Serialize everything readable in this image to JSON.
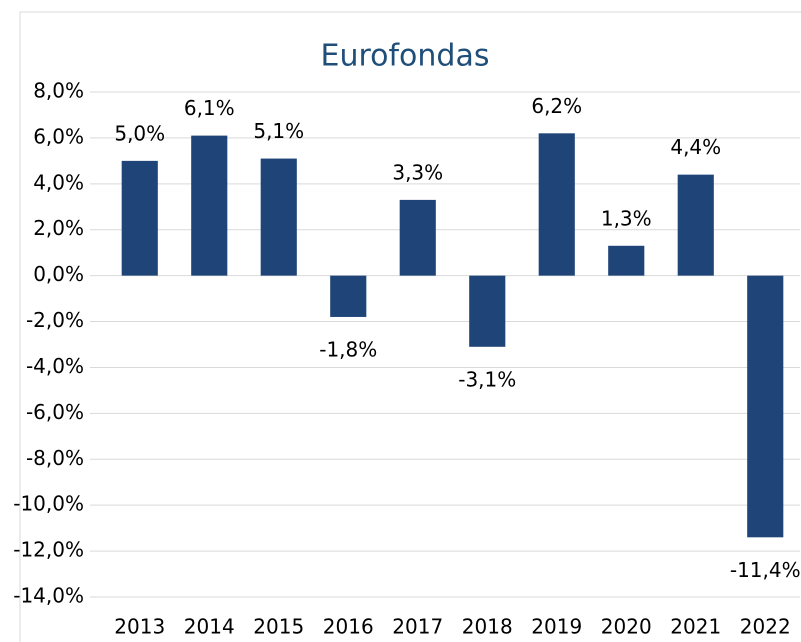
{
  "chart_data": {
    "type": "bar",
    "title": "Eurofondas",
    "categories": [
      "2013",
      "2014",
      "2015",
      "2016",
      "2017",
      "2018",
      "2019",
      "2020",
      "2021",
      "2022"
    ],
    "values": [
      5.0,
      6.1,
      5.1,
      -1.8,
      3.3,
      -3.1,
      6.2,
      1.3,
      4.4,
      -11.4
    ],
    "value_labels": [
      "5,0%",
      "6,1%",
      "5,1%",
      "-1,8%",
      "3,3%",
      "-3,1%",
      "6,2%",
      "1,3%",
      "4,4%",
      "-11,4%"
    ],
    "color": "#1f4578",
    "ylim": [
      -14,
      8
    ],
    "yticks": [
      {
        "value": -14,
        "label": "-14,0%"
      },
      {
        "value": -12,
        "label": "-12,0%"
      },
      {
        "value": -10,
        "label": "-10,0%"
      },
      {
        "value": -8,
        "label": "-8,0%"
      },
      {
        "value": -6,
        "label": "-6,0%"
      },
      {
        "value": -4,
        "label": "-4,0%"
      },
      {
        "value": -2,
        "label": "-2,0%"
      },
      {
        "value": 0,
        "label": "0,0%"
      },
      {
        "value": 2,
        "label": "2,0%"
      },
      {
        "value": 4,
        "label": "4,0%"
      },
      {
        "value": 6,
        "label": "6,0%"
      },
      {
        "value": 8,
        "label": "8,0%"
      }
    ],
    "grid": true
  }
}
